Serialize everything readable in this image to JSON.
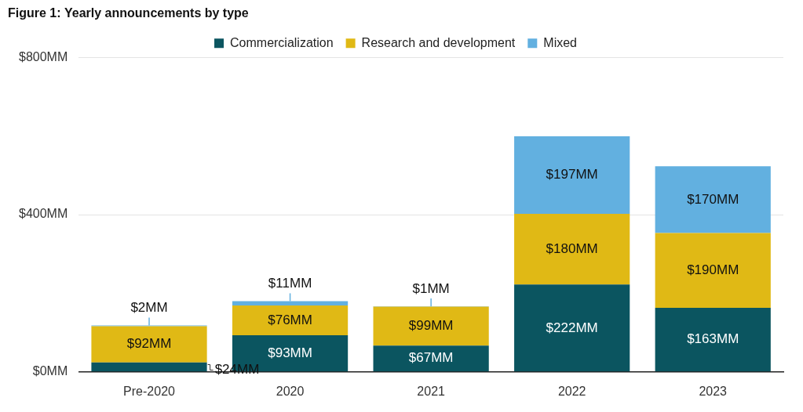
{
  "chart_data": {
    "type": "bar",
    "title": "Figure 1: Yearly announcements by type",
    "categories": [
      "Pre-2020",
      "2020",
      "2021",
      "2022",
      "2023"
    ],
    "series": [
      {
        "name": "Commercialization",
        "color": "#0b5560",
        "values": [
          24,
          93,
          67,
          222,
          163
        ],
        "value_labels": [
          "$24MM",
          "$93MM",
          "$67MM",
          "$222MM",
          "$163MM"
        ]
      },
      {
        "name": "Research and development",
        "color": "#e0b915",
        "values": [
          92,
          76,
          99,
          180,
          190
        ],
        "value_labels": [
          "$92MM",
          "$76MM",
          "$99MM",
          "$180MM",
          "$190MM"
        ]
      },
      {
        "name": "Mixed",
        "color": "#62b0e0",
        "values": [
          2,
          11,
          1,
          197,
          170
        ],
        "value_labels": [
          "$2MM",
          "$11MM",
          "$1MM",
          "$197MM",
          "$170MM"
        ]
      }
    ],
    "ylim": [
      0,
      800
    ],
    "yticks": [
      {
        "value": 0,
        "label": "$0MM"
      },
      {
        "value": 400,
        "label": "$400MM"
      },
      {
        "value": 800,
        "label": "$800MM"
      }
    ],
    "grid": true,
    "stacked": true,
    "data_labels": true,
    "legend": "top"
  }
}
